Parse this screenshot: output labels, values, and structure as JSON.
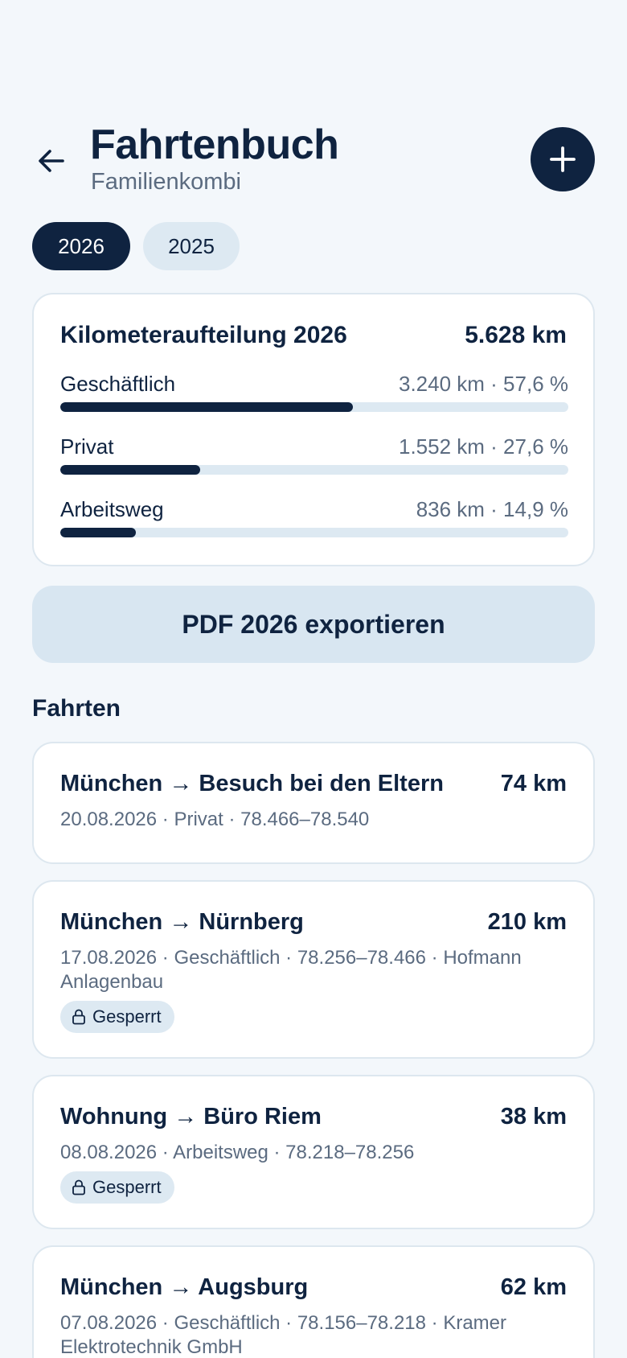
{
  "header": {
    "title": "Fahrtenbuch",
    "subtitle": "Familienkombi",
    "back_icon": "arrow-left-icon",
    "add_icon": "plus-icon"
  },
  "year_tabs": [
    {
      "label": "2026",
      "active": true
    },
    {
      "label": "2025",
      "active": false
    }
  ],
  "summary": {
    "title": "Kilometeraufteilung 2026",
    "total": "5.628 km",
    "rows": [
      {
        "label": "Geschäftlich",
        "value": "3.240 km · 57,6 %",
        "fraction": 0.576
      },
      {
        "label": "Privat",
        "value": "1.552 km · 27,6 %",
        "fraction": 0.276
      },
      {
        "label": "Arbeitsweg",
        "value": "836 km · 14,9 %",
        "fraction": 0.149
      }
    ]
  },
  "export_button": "PDF 2026 exportieren",
  "trips_title": "Fahrten",
  "lock_label": "Gesperrt",
  "trips": [
    {
      "route": "München → Besuch bei den Eltern",
      "km": "74 km",
      "meta": "20.08.2026 · Privat · 78.466–78.540",
      "locked": false
    },
    {
      "route": "München → Nürnberg",
      "km": "210 km",
      "meta": "17.08.2026 · Geschäftlich · 78.256–78.466 · Hofmann Anlagenbau",
      "locked": true
    },
    {
      "route": "Wohnung → Büro Riem",
      "km": "38 km",
      "meta": "08.08.2026 · Arbeitsweg · 78.218–78.256",
      "locked": true
    },
    {
      "route": "München → Augsburg",
      "km": "62 km",
      "meta": "07.08.2026 · Geschäftlich · 78.156–78.218 · Kramer Elektrotechnik GmbH",
      "locked": false
    }
  ],
  "colors": {
    "primary": "#0f2340",
    "muted_text": "#5b6b80",
    "track": "#dde9f2",
    "background": "#f3f7fb"
  }
}
